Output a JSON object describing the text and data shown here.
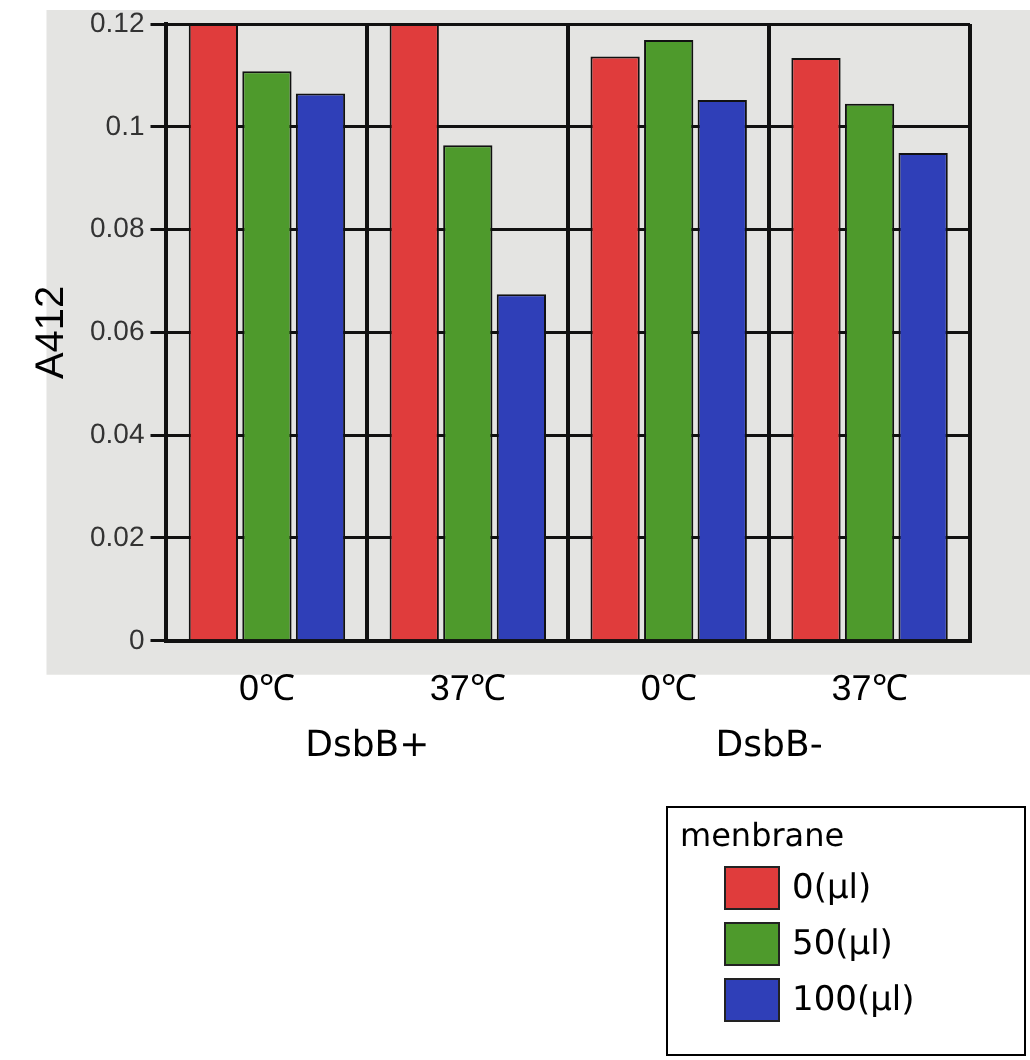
{
  "chart_data": {
    "type": "bar",
    "ylabel": "A412",
    "legend_title": "menbrane",
    "categories": [
      "0℃",
      "37℃",
      "0℃",
      "37℃"
    ],
    "series": [
      {
        "name": "0(μl)",
        "color": "#e03c3c",
        "values": [
          0.12,
          0.12,
          0.1137,
          0.1134
        ]
      },
      {
        "name": "50(μl)",
        "color": "#4e9a2c",
        "values": [
          0.1108,
          0.0964,
          0.1169,
          0.1045
        ]
      },
      {
        "name": "100(μl)",
        "color": "#2f3fb8",
        "values": [
          0.1065,
          0.0674,
          0.1052,
          0.0949
        ]
      }
    ],
    "ylim": [
      0,
      0.12
    ],
    "yticks": [
      0,
      0.02,
      0.04,
      0.06,
      0.08,
      0.1,
      0.12
    ],
    "grid": true,
    "legend": "bottom right",
    "annotations": [
      "DsbB+",
      "DsbB-"
    ]
  }
}
